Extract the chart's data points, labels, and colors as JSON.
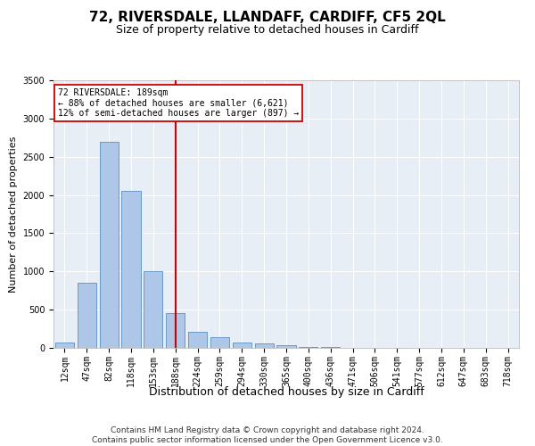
{
  "title": "72, RIVERSDALE, LLANDAFF, CARDIFF, CF5 2QL",
  "subtitle": "Size of property relative to detached houses in Cardiff",
  "xlabel": "Distribution of detached houses by size in Cardiff",
  "ylabel": "Number of detached properties",
  "categories": [
    "12sqm",
    "47sqm",
    "82sqm",
    "118sqm",
    "153sqm",
    "188sqm",
    "224sqm",
    "259sqm",
    "294sqm",
    "330sqm",
    "365sqm",
    "400sqm",
    "436sqm",
    "471sqm",
    "506sqm",
    "541sqm",
    "577sqm",
    "612sqm",
    "647sqm",
    "683sqm",
    "718sqm"
  ],
  "values": [
    75,
    850,
    2700,
    2050,
    1000,
    450,
    210,
    135,
    70,
    55,
    30,
    15,
    8,
    4,
    2,
    1,
    0,
    0,
    0,
    0,
    0
  ],
  "bar_color": "#aec6e8",
  "bar_edge_color": "#5a8fc0",
  "vline_x_idx": 5,
  "vline_color": "#cc0000",
  "annotation_text": "72 RIVERSDALE: 189sqm\n← 88% of detached houses are smaller (6,621)\n12% of semi-detached houses are larger (897) →",
  "annotation_box_color": "#ffffff",
  "annotation_box_edge": "#cc0000",
  "ylim": [
    0,
    3500
  ],
  "yticks": [
    0,
    500,
    1000,
    1500,
    2000,
    2500,
    3000,
    3500
  ],
  "bg_color": "#ffffff",
  "plot_bg_color": "#e8eef5",
  "footer": "Contains HM Land Registry data © Crown copyright and database right 2024.\nContains public sector information licensed under the Open Government Licence v3.0.",
  "title_fontsize": 11,
  "subtitle_fontsize": 9,
  "xlabel_fontsize": 9,
  "ylabel_fontsize": 8,
  "tick_fontsize": 7,
  "footer_fontsize": 6.5
}
